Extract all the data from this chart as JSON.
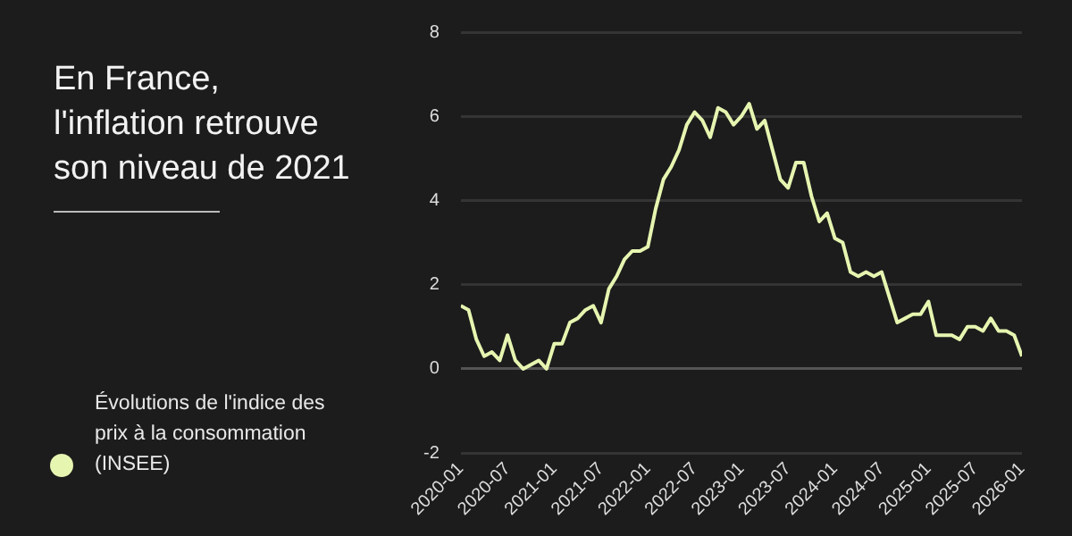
{
  "chart_data": {
    "type": "line",
    "title": "En France, l'inflation retrouve son niveau de 2021",
    "x": [
      "2020-01",
      "2020-02",
      "2020-03",
      "2020-04",
      "2020-05",
      "2020-06",
      "2020-07",
      "2020-08",
      "2020-09",
      "2020-10",
      "2020-11",
      "2020-12",
      "2021-01",
      "2021-02",
      "2021-03",
      "2021-04",
      "2021-05",
      "2021-06",
      "2021-07",
      "2021-08",
      "2021-09",
      "2021-10",
      "2021-11",
      "2021-12",
      "2022-01",
      "2022-02",
      "2022-03",
      "2022-04",
      "2022-05",
      "2022-06",
      "2022-07",
      "2022-08",
      "2022-09",
      "2022-10",
      "2022-11",
      "2022-12",
      "2023-01",
      "2023-02",
      "2023-03",
      "2023-04",
      "2023-05",
      "2023-06",
      "2023-07",
      "2023-08",
      "2023-09",
      "2023-10",
      "2023-11",
      "2023-12",
      "2024-01",
      "2024-02",
      "2024-03",
      "2024-04",
      "2024-05",
      "2024-06",
      "2024-07",
      "2024-08",
      "2024-09",
      "2024-10",
      "2024-11",
      "2024-12",
      "2025-01",
      "2025-02",
      "2025-03",
      "2025-04",
      "2025-05",
      "2025-06",
      "2025-07",
      "2025-08",
      "2025-09",
      "2025-10",
      "2025-11",
      "2025-12",
      "2026-01"
    ],
    "series": [
      {
        "name": "Évolutions de l'indice des prix à la consommation (INSEE)",
        "color": "#e6f5b0",
        "values": [
          1.5,
          1.4,
          0.7,
          0.3,
          0.4,
          0.2,
          0.8,
          0.2,
          0.0,
          0.1,
          0.2,
          0.0,
          0.6,
          0.6,
          1.1,
          1.2,
          1.4,
          1.5,
          1.1,
          1.9,
          2.2,
          2.6,
          2.8,
          2.8,
          2.9,
          3.8,
          4.5,
          4.8,
          5.2,
          5.8,
          6.1,
          5.9,
          5.5,
          6.2,
          6.1,
          5.8,
          6.0,
          6.3,
          5.7,
          5.9,
          5.2,
          4.5,
          4.3,
          4.9,
          4.9,
          4.1,
          3.5,
          3.7,
          3.1,
          3.0,
          2.3,
          2.2,
          2.3,
          2.2,
          2.3,
          1.7,
          1.1,
          1.2,
          1.3,
          1.3,
          1.6,
          0.8,
          0.8,
          0.8,
          0.7,
          1.0,
          1.0,
          0.9,
          1.2,
          0.9,
          0.9,
          0.8,
          0.3
        ]
      }
    ],
    "xlim": [
      "2020-01",
      "2026-01"
    ],
    "xticks": [
      "2020-01",
      "2020-07",
      "2021-01",
      "2021-07",
      "2022-01",
      "2022-07",
      "2023-01",
      "2023-07",
      "2024-01",
      "2024-07",
      "2025-01",
      "2025-07",
      "2026-01"
    ],
    "ylim": [
      -2,
      8
    ],
    "yticks": [
      -2,
      0,
      2,
      4,
      6,
      8
    ],
    "grid": "y",
    "legend": "left",
    "marker": "none",
    "line_style": "solid"
  }
}
